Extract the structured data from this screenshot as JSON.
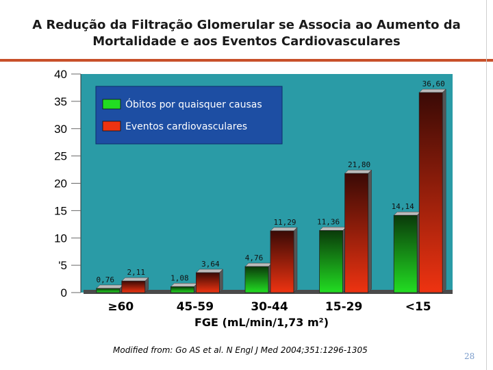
{
  "title": {
    "line1": "A Redução da Filtração Glomerular se Associa ao Aumento da",
    "line2": "Mortalidade e aos Eventos Cardiovasculares"
  },
  "chart_data": {
    "type": "bar",
    "xlabel": "FGE (mL/min/1,73 m²)",
    "ylabel": "",
    "categories": [
      "≥60",
      "45-59",
      "30-44",
      "15-29",
      "<15"
    ],
    "series": [
      {
        "name": "Óbitos por quaisquer causas",
        "color": "#22dd22",
        "values": [
          0.76,
          1.08,
          4.76,
          11.36,
          14.14
        ],
        "labels": [
          "0,76",
          "1,08",
          "4,76",
          "11,36",
          "14,14"
        ]
      },
      {
        "name": "Eventos cardiovasculares",
        "color": "#ee3311",
        "values": [
          2.11,
          3.64,
          11.29,
          21.8,
          36.6
        ],
        "labels": [
          "2,11",
          "3,64",
          "11,29",
          "21,80",
          "36,60"
        ]
      }
    ],
    "y_ticks": [
      "0",
      "'5",
      "10",
      "15",
      "20",
      "25",
      "30",
      "35",
      "40"
    ],
    "ylim": [
      0,
      40
    ],
    "grid": false,
    "legend": "top-left",
    "plot_background": "#2a9ba6"
  },
  "source": "Modified from: Go AS et al. N Engl J Med 2004;351:1296-1305",
  "page_number": "28"
}
